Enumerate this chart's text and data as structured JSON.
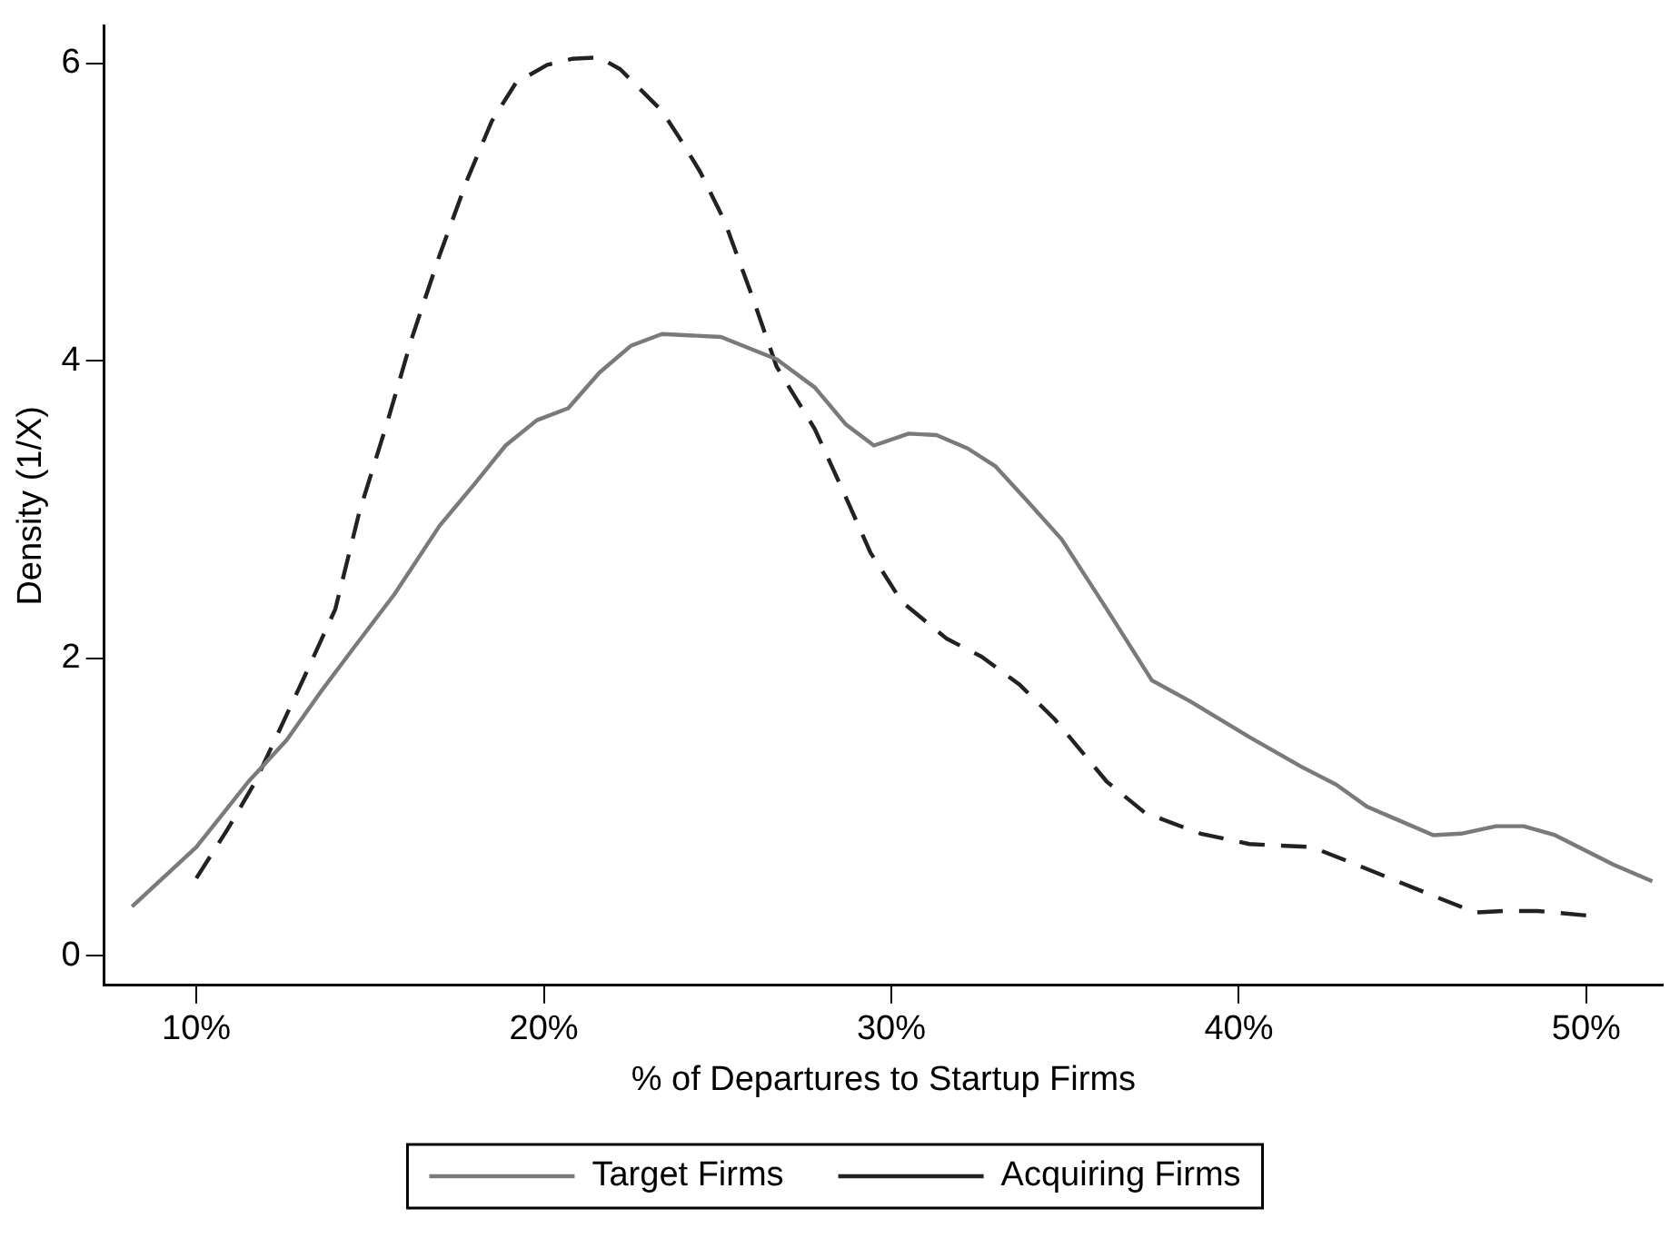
{
  "chart_data": {
    "type": "line",
    "xlabel": "% of Departures to Startup Firms",
    "ylabel": "Density (1/X)",
    "xlim": [
      7.35,
      52.2
    ],
    "ylim": [
      -0.2,
      6.25
    ],
    "xticks": [
      {
        "value": 10,
        "label": "10%"
      },
      {
        "value": 20,
        "label": "20%"
      },
      {
        "value": 30,
        "label": "30%"
      },
      {
        "value": 40,
        "label": "40%"
      },
      {
        "value": 50,
        "label": "50%"
      }
    ],
    "yticks": [
      0,
      2,
      4,
      6
    ],
    "grid": false,
    "legend": "bottom",
    "marker": "none",
    "series": [
      {
        "name": "Target Firms",
        "color": "#7a7a7a",
        "line_style": "solid",
        "x": [
          8.15,
          10,
          11.5,
          12.6,
          13.6,
          14.5,
          15.7,
          17.0,
          18.0,
          18.9,
          19.8,
          20.7,
          21.6,
          22.5,
          23.4,
          25.1,
          26.7,
          27.8,
          28.7,
          29.5,
          30.5,
          31.3,
          32.2,
          33.0,
          33.9,
          34.9,
          36.2,
          37.5,
          38.6,
          40.3,
          41.8,
          42.8,
          43.7,
          45.6,
          46.4,
          47.4,
          48.2,
          49.1,
          50.8,
          51.9
        ],
        "values": [
          0.33,
          0.73,
          1.17,
          1.45,
          1.78,
          2.06,
          2.43,
          2.89,
          3.17,
          3.43,
          3.6,
          3.68,
          3.92,
          4.1,
          4.18,
          4.16,
          4.01,
          3.82,
          3.57,
          3.43,
          3.51,
          3.5,
          3.41,
          3.29,
          3.06,
          2.8,
          2.33,
          1.85,
          1.71,
          1.47,
          1.27,
          1.15,
          1.0,
          0.81,
          0.82,
          0.87,
          0.87,
          0.81,
          0.61,
          0.5
        ]
      },
      {
        "name": "Acquiring Firms",
        "color": "#222222",
        "line_style": "dashed",
        "x": [
          10,
          10.9,
          11.7,
          12.4,
          13.2,
          14.0,
          14.7,
          15.5,
          16.2,
          17.0,
          17.8,
          18.5,
          19.2,
          20.1,
          20.8,
          21.6,
          22.2,
          23.4,
          23.9,
          24.5,
          25.2,
          26.0,
          26.7,
          27.8,
          28.6,
          29.4,
          30.3,
          31.6,
          32.6,
          33.7,
          34.7,
          36.2,
          37.3,
          38.9,
          40.3,
          42.1,
          43.4,
          45.3,
          46.8,
          47.6,
          48.6,
          50.0
        ],
        "values": [
          0.52,
          0.85,
          1.17,
          1.52,
          1.92,
          2.33,
          2.99,
          3.59,
          4.15,
          4.71,
          5.22,
          5.61,
          5.87,
          5.99,
          6.03,
          6.04,
          5.96,
          5.68,
          5.5,
          5.27,
          4.94,
          4.43,
          3.96,
          3.54,
          3.13,
          2.71,
          2.38,
          2.13,
          2.01,
          1.82,
          1.59,
          1.17,
          0.96,
          0.82,
          0.75,
          0.73,
          0.61,
          0.43,
          0.29,
          0.3,
          0.3,
          0.27
        ]
      }
    ]
  }
}
